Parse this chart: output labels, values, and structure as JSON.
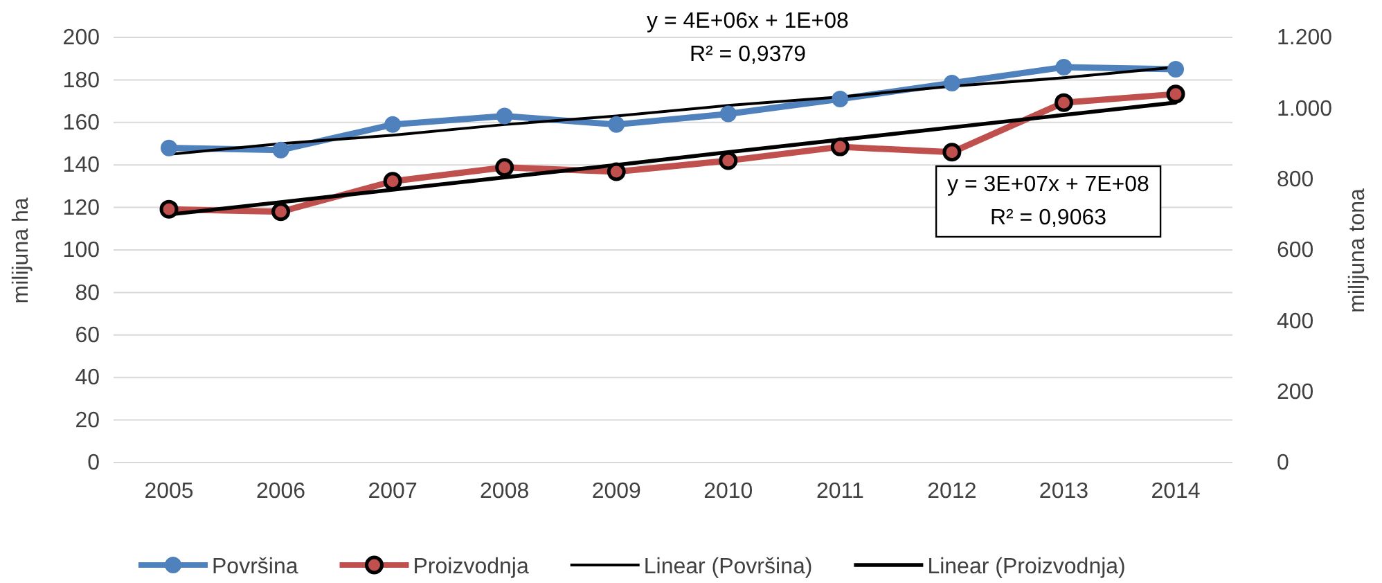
{
  "chart_data": {
    "type": "line",
    "ylabel": "milijuna ha",
    "y2label": "milijuna tona",
    "categories": [
      "2005",
      "2006",
      "2007",
      "2008",
      "2009",
      "2010",
      "2011",
      "2012",
      "2013",
      "2014"
    ],
    "series": [
      {
        "name": "Površina",
        "color": "#4f81bd",
        "marker": "circle",
        "values": [
          148,
          147,
          159,
          163,
          159,
          164,
          171,
          178.5,
          186,
          185
        ]
      },
      {
        "name": "Proizvodnja",
        "color": "#c0504d",
        "marker": "circle",
        "axis": "y2",
        "values": [
          715,
          708,
          794,
          833,
          821,
          852,
          891,
          876,
          1016,
          1040
        ]
      },
      {
        "name": "Linear (Površina)",
        "color": "#000000",
        "marker": "none",
        "values": [
          145,
          150,
          154,
          159,
          163,
          168,
          172,
          177,
          181,
          186
        ]
      },
      {
        "name": "Linear (Proizvodnja)",
        "color": "#000000",
        "marker": "none",
        "axis": "y2",
        "values": [
          700,
          735,
          770,
          805,
          840,
          876,
          911,
          946,
          981,
          1016
        ]
      }
    ],
    "ylim": [
      0,
      200
    ],
    "yticks": [
      0,
      20,
      40,
      60,
      80,
      100,
      120,
      140,
      160,
      180,
      200
    ],
    "y2lim": [
      0,
      1200
    ],
    "y2ticks": [
      0,
      200,
      400,
      600,
      800,
      {
        "value": 1000,
        "label": "1.000"
      },
      {
        "value": 1200,
        "label": "1.200"
      }
    ],
    "annotations": [
      "y = 4E+06x + 1E+08\nR² = 0,9379",
      "y = 3E+07x + 7E+08\nR² = 0,9063"
    ],
    "grid": "y",
    "legend": "bottom",
    "line_style": "solid"
  }
}
